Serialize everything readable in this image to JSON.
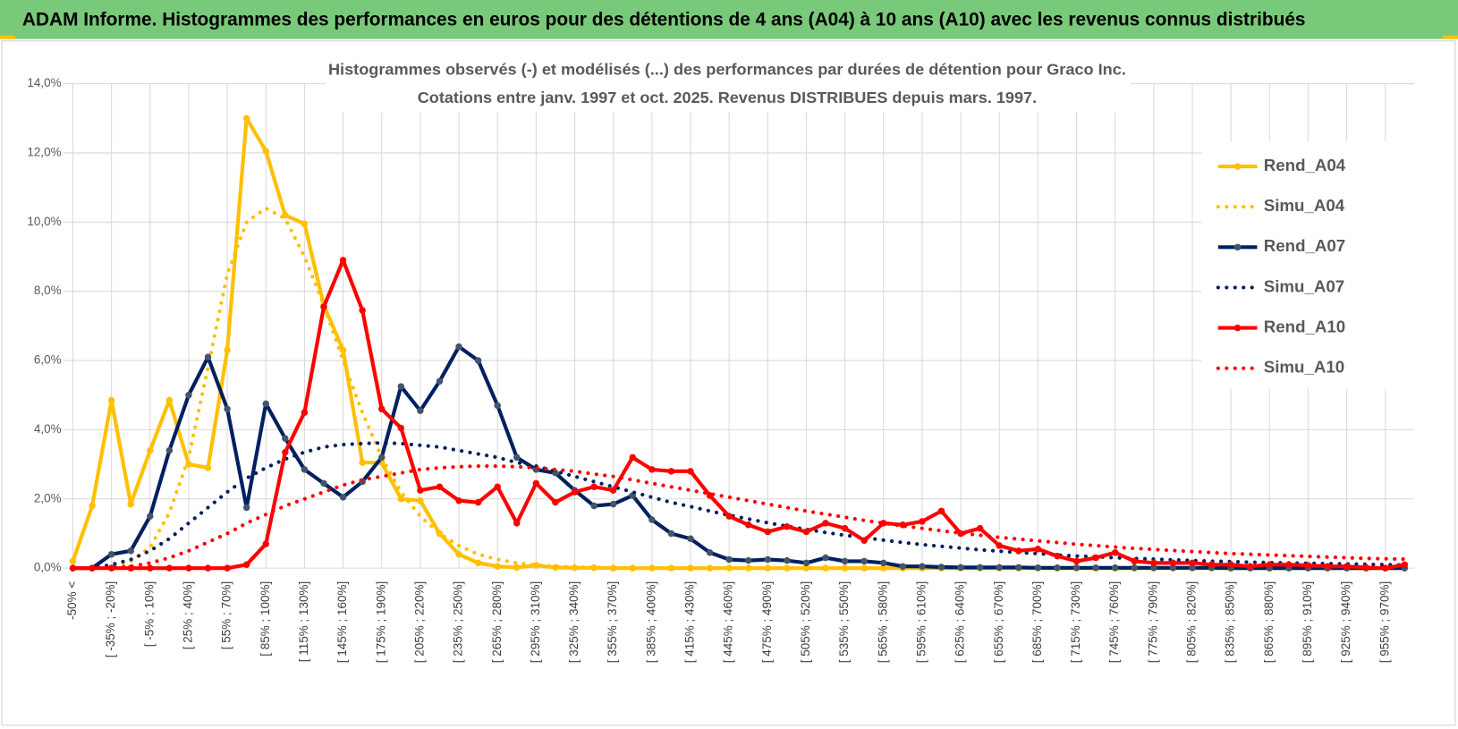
{
  "header": {
    "title": "ADAM Informe. Histogrammes des performances en euros pour des détentions de 4 ans (A04) à 10 ans (A10) avec les revenus connus distribués"
  },
  "chart_data": {
    "type": "line",
    "title": "Histogrammes observés (-) et modélisés (...) des performances par durées de détention pour Graco Inc.",
    "subtitle": "Cotations entre janv. 1997 et oct. 2025. Revenus DISTRIBUES depuis mars. 1997.",
    "categories": [
      "-50% <",
      null,
      "[ -35% ; -20%]",
      null,
      "[ -5% ; 10%]",
      null,
      "[ 25% ; 40%]",
      null,
      "[ 55% ; 70%]",
      null,
      "[ 85% ; 100%]",
      null,
      "[ 115% ; 130%]",
      null,
      "[ 145% ; 160%]",
      null,
      "[ 175% ; 190%]",
      null,
      "[ 205% ; 220%]",
      null,
      "[ 235% ; 250%]",
      null,
      "[ 265% ; 280%]",
      null,
      "[ 295% ; 310%]",
      null,
      "[ 325% ; 340%]",
      null,
      "[ 355% ; 370%]",
      null,
      "[ 385% ; 400%]",
      null,
      "[ 415% ; 430%]",
      null,
      "[ 445% ; 460%]",
      null,
      "[ 475% ; 490%]",
      null,
      "[ 505% ; 520%]",
      null,
      "[ 535% ; 550%]",
      null,
      "[ 565% ; 580%]",
      null,
      "[ 595% ; 610%]",
      null,
      "[ 625% ; 640%]",
      null,
      "[ 655% ; 670%]",
      null,
      "[ 685% ; 700%]",
      null,
      "[ 715% ; 730%]",
      null,
      "[ 745% ; 760%]",
      null,
      "[ 775% ; 790%]",
      null,
      "[ 805% ; 820%]",
      null,
      "[ 835% ; 850%]",
      null,
      "[ 865% ; 880%]",
      null,
      "[ 895% ; 910%]",
      null,
      "[ 925% ; 940%]",
      null,
      "[ 955% ; 970%]",
      null
    ],
    "series": [
      {
        "name": "Rend_A04",
        "color": "#ffc000",
        "style": "solid",
        "markers": true,
        "values": [
          0.2,
          1.8,
          4.85,
          1.85,
          3.4,
          4.85,
          3.0,
          2.9,
          6.3,
          13.0,
          12.05,
          10.2,
          9.95,
          7.6,
          6.3,
          3.05,
          3.05,
          2.0,
          1.95,
          1.0,
          0.4,
          0.15,
          0.05,
          0.02,
          0.08,
          0.02,
          0.01,
          0.01,
          0,
          0,
          0,
          0,
          0,
          0,
          0,
          0,
          0,
          0,
          0,
          0,
          0,
          0,
          0,
          0,
          0,
          0,
          0,
          0,
          0,
          0,
          0,
          0,
          0,
          0,
          0,
          0,
          0,
          0,
          0,
          0,
          0,
          0,
          0,
          0,
          0,
          0,
          0,
          0,
          0,
          0
        ]
      },
      {
        "name": "Simu_A04",
        "color": "#ffc000",
        "style": "dotted",
        "markers": false,
        "values": [
          0,
          0,
          0.05,
          0.2,
          0.6,
          1.6,
          3.2,
          5.8,
          8.5,
          10.0,
          10.4,
          10.1,
          9.0,
          7.6,
          6.0,
          4.5,
          3.2,
          2.2,
          1.5,
          1.0,
          0.65,
          0.4,
          0.25,
          0.15,
          0.09,
          0.05,
          0.03,
          0.02,
          0.01,
          0,
          0,
          0,
          0,
          0,
          0,
          0,
          0,
          0,
          0,
          0,
          0,
          0,
          0,
          0,
          0,
          0,
          0,
          0,
          0,
          0,
          0,
          0,
          0,
          0,
          0,
          0,
          0,
          0,
          0,
          0,
          0,
          0,
          0,
          0,
          0,
          0,
          0,
          0,
          0,
          0
        ]
      },
      {
        "name": "Rend_A07",
        "color": "#002060",
        "marker_color": "#44546a",
        "style": "solid",
        "markers": true,
        "values": [
          0,
          0,
          0.4,
          0.5,
          1.5,
          3.4,
          5.0,
          6.1,
          4.6,
          1.75,
          4.75,
          3.75,
          2.85,
          2.45,
          2.05,
          2.5,
          3.2,
          5.25,
          4.55,
          5.4,
          6.4,
          6.0,
          4.7,
          3.2,
          2.85,
          2.75,
          2.25,
          1.8,
          1.85,
          2.1,
          1.4,
          1.0,
          0.85,
          0.45,
          0.25,
          0.22,
          0.25,
          0.22,
          0.15,
          0.3,
          0.2,
          0.2,
          0.15,
          0.05,
          0.05,
          0.03,
          0.02,
          0.02,
          0.02,
          0.02,
          0.01,
          0.01,
          0.01,
          0.01,
          0.01,
          0.01,
          0.01,
          0.01,
          0.01,
          0.01,
          0,
          0,
          0,
          0,
          0,
          0,
          0,
          0,
          0,
          0
        ]
      },
      {
        "name": "Simu_A07",
        "color": "#002060",
        "style": "dotted",
        "markers": false,
        "values": [
          0,
          0,
          0.1,
          0.25,
          0.5,
          0.85,
          1.3,
          1.75,
          2.2,
          2.6,
          2.9,
          3.15,
          3.35,
          3.5,
          3.57,
          3.6,
          3.62,
          3.6,
          3.55,
          3.5,
          3.4,
          3.3,
          3.2,
          3.05,
          2.95,
          2.8,
          2.65,
          2.5,
          2.35,
          2.2,
          2.05,
          1.9,
          1.78,
          1.65,
          1.53,
          1.42,
          1.31,
          1.21,
          1.12,
          1.03,
          0.95,
          0.88,
          0.81,
          0.74,
          0.68,
          0.63,
          0.58,
          0.53,
          0.49,
          0.45,
          0.42,
          0.38,
          0.35,
          0.33,
          0.3,
          0.28,
          0.26,
          0.24,
          0.22,
          0.2,
          0.19,
          0.17,
          0.16,
          0.15,
          0.14,
          0.13,
          0.12,
          0.11,
          0.1,
          0.09
        ]
      },
      {
        "name": "Rend_A10",
        "color": "#ff0000",
        "style": "solid",
        "markers": true,
        "values": [
          0,
          0,
          0,
          0,
          0,
          0,
          0,
          0,
          0,
          0.1,
          0.7,
          3.35,
          4.5,
          7.55,
          8.9,
          7.45,
          4.6,
          4.05,
          2.25,
          2.35,
          1.95,
          1.9,
          2.35,
          1.3,
          2.45,
          1.9,
          2.2,
          2.35,
          2.25,
          3.2,
          2.85,
          2.8,
          2.8,
          2.1,
          1.5,
          1.25,
          1.05,
          1.2,
          1.05,
          1.3,
          1.15,
          0.8,
          1.3,
          1.25,
          1.35,
          1.65,
          1.0,
          1.15,
          0.65,
          0.5,
          0.55,
          0.35,
          0.2,
          0.3,
          0.45,
          0.2,
          0.15,
          0.15,
          0.15,
          0.1,
          0.1,
          0.05,
          0.1,
          0.1,
          0.08,
          0.05,
          0.05,
          0.02,
          0,
          0.1
        ]
      },
      {
        "name": "Simu_A10",
        "color": "#ff0000",
        "style": "dotted",
        "markers": false,
        "values": [
          0,
          0,
          0.02,
          0.05,
          0.15,
          0.3,
          0.5,
          0.75,
          1.0,
          1.3,
          1.55,
          1.8,
          2.0,
          2.2,
          2.4,
          2.55,
          2.65,
          2.75,
          2.85,
          2.9,
          2.93,
          2.95,
          2.95,
          2.93,
          2.9,
          2.85,
          2.8,
          2.72,
          2.65,
          2.55,
          2.45,
          2.35,
          2.25,
          2.15,
          2.05,
          1.95,
          1.85,
          1.75,
          1.65,
          1.56,
          1.47,
          1.38,
          1.3,
          1.22,
          1.15,
          1.08,
          1.01,
          0.95,
          0.89,
          0.84,
          0.79,
          0.74,
          0.69,
          0.65,
          0.61,
          0.57,
          0.54,
          0.51,
          0.48,
          0.45,
          0.42,
          0.4,
          0.38,
          0.36,
          0.34,
          0.32,
          0.3,
          0.28,
          0.27,
          0.26
        ]
      }
    ],
    "ylim": [
      0,
      14
    ],
    "yticks": [
      {
        "value": 0,
        "label": "0,0%"
      },
      {
        "value": 2,
        "label": "2,0%"
      },
      {
        "value": 4,
        "label": "4,0%"
      },
      {
        "value": 6,
        "label": "6,0%"
      },
      {
        "value": 8,
        "label": "8,0%"
      },
      {
        "value": 10,
        "label": "10,0%"
      },
      {
        "value": 12,
        "label": "12,0%"
      },
      {
        "value": 14,
        "label": "14,0%"
      }
    ],
    "grid": true,
    "legend": "right"
  }
}
